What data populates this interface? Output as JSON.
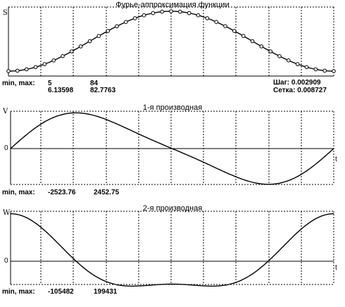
{
  "window": {
    "plots": [
      {
        "id": "fourier",
        "title": "Фурье-аппроксимация функции",
        "axis_letter": "S",
        "minmax_label": "min, max:",
        "min_top": "5",
        "max_top": "84",
        "min_bottom": "6.13598",
        "max_bottom": "82.7763",
        "step_label": "Шаг: 0.002909",
        "grid_label": "Сетка: 0.008727"
      },
      {
        "id": "deriv1",
        "title": "1-я производная",
        "axis_letter": "V",
        "zero_label": "0",
        "t_label": "t",
        "minmax_label": "min, max:",
        "min": "-2523.76",
        "max": "2452.75"
      },
      {
        "id": "deriv2",
        "title": "2-я производная",
        "axis_letter": "W",
        "zero_label": "0",
        "t_label": "t",
        "minmax_label": "min, max:",
        "min": "-105482",
        "max": "199431"
      }
    ]
  },
  "chart_data": [
    {
      "type": "line",
      "title": "Фурье-аппроксимация функции",
      "ylabel": "S",
      "ylim": [
        5,
        84
      ],
      "series": [
        {
          "values_fn": "cosine-arch",
          "min": 6.13598,
          "max": 82.7763
        }
      ],
      "markers": "circles"
    },
    {
      "type": "line",
      "title": "1-я производная",
      "ylabel": "V",
      "ylim": [
        -2523.76,
        2452.75
      ]
    },
    {
      "type": "line",
      "title": "2-я производная",
      "ylabel": "W",
      "ylim": [
        -105482,
        199431
      ]
    }
  ]
}
